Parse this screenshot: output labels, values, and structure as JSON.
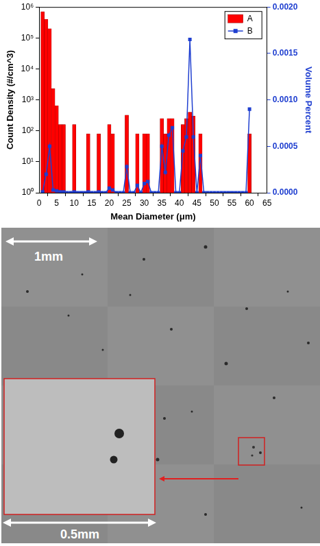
{
  "chart_data": {
    "type": "bar",
    "x_label": "Mean Diameter (μm)",
    "y_label": "Count Density (#/cm^3)",
    "y2_label": "Volume Percent",
    "x": [
      1,
      2,
      3,
      4,
      5,
      6,
      7,
      8,
      9,
      10,
      11,
      12,
      13,
      14,
      15,
      16,
      17,
      18,
      19,
      20,
      21,
      22,
      23,
      24,
      25,
      26,
      27,
      28,
      29,
      30,
      31,
      32,
      33,
      34,
      35,
      36,
      37,
      38,
      39,
      40,
      41,
      42,
      43,
      44,
      45,
      46,
      47,
      48,
      49,
      50,
      51,
      52,
      53,
      54,
      55,
      56,
      57,
      58,
      59,
      60
    ],
    "series": [
      {
        "name": "A",
        "type": "bar",
        "color": "#ff0000",
        "values": [
          700000,
          400000,
          200000,
          2300,
          650,
          160,
          160,
          null,
          null,
          160,
          null,
          null,
          null,
          80,
          null,
          null,
          80,
          null,
          null,
          160,
          80,
          null,
          null,
          null,
          320,
          null,
          null,
          80,
          null,
          80,
          80,
          null,
          null,
          null,
          250,
          80,
          250,
          250,
          null,
          null,
          160,
          250,
          400,
          300,
          null,
          80,
          null,
          null,
          null,
          null,
          null,
          null,
          null,
          null,
          null,
          null,
          null,
          null,
          null,
          80
        ]
      },
      {
        "name": "B",
        "type": "line",
        "color": "#1f3fd0",
        "marker": "square",
        "line_style": "solid",
        "axis": "y2",
        "values": [
          1e-05,
          0.0002,
          0.0005,
          3e-05,
          2e-05,
          1e-05,
          1e-05,
          0,
          0,
          1e-05,
          0,
          0,
          0,
          1e-05,
          0,
          0,
          1e-05,
          0,
          0,
          5e-05,
          3e-05,
          0,
          0,
          0,
          0.00028,
          0,
          0,
          8e-05,
          0,
          0.0001,
          0.00012,
          0,
          0,
          0,
          0.0005,
          0.00022,
          0.00062,
          0.0007,
          0,
          0,
          0.00045,
          0.0006,
          0.00165,
          0.0006,
          0,
          0.0004,
          0,
          0,
          0,
          0,
          0,
          0,
          0,
          0,
          0,
          0,
          0,
          0,
          0,
          0.0009
        ]
      }
    ],
    "xlim": [
      0,
      65
    ],
    "xticks": [
      0,
      5,
      10,
      15,
      20,
      25,
      30,
      35,
      40,
      45,
      50,
      55,
      60,
      65
    ],
    "log": "y",
    "ylim": [
      1,
      1000000
    ],
    "yticks": [
      {
        "value": 1,
        "label": "10⁰"
      },
      {
        "value": 10,
        "label": "10¹"
      },
      {
        "value": 100,
        "label": "10²"
      },
      {
        "value": 1000,
        "label": "10³"
      },
      {
        "value": 10000,
        "label": "10⁴"
      },
      {
        "value": 100000,
        "label": "10⁵"
      },
      {
        "value": 1000000,
        "label": "10⁶"
      }
    ],
    "y2lim": [
      0,
      0.002
    ],
    "y2ticks": [
      {
        "value": 0,
        "label": "0.0000"
      },
      {
        "value": 0.0005,
        "label": "0.0005"
      },
      {
        "value": 0.001,
        "label": "0.0010"
      },
      {
        "value": 0.0015,
        "label": "0.0015"
      },
      {
        "value": 0.002,
        "label": "0.0020"
      }
    ],
    "grid": false,
    "legend": "upper right"
  },
  "image": {
    "scale_bar": "1mm",
    "inset_scale_bar": "0.5mm"
  }
}
